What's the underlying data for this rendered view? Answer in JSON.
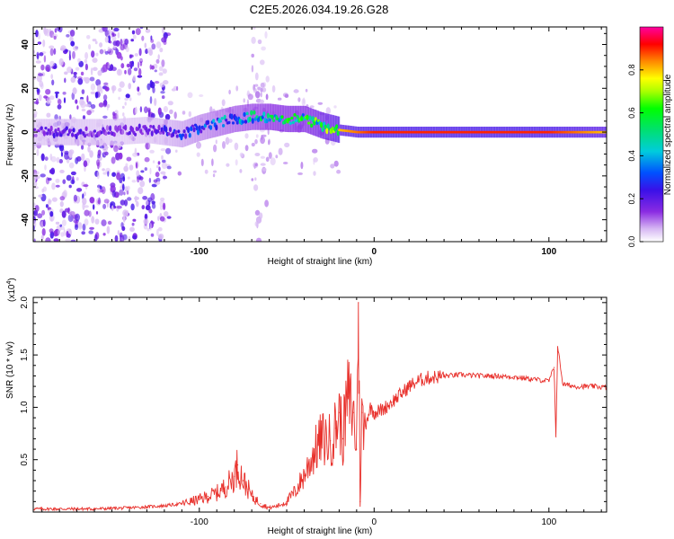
{
  "title": "C2E5.2026.034.19.26.G28",
  "colors": {
    "snr_line": "#e8302b",
    "axis": "#000000",
    "scatter_low": "#d8b8f4",
    "scatter_mid": "#7a2cf0",
    "scatter_core": "#5d10e6"
  },
  "chart_data": [
    {
      "type": "heatmap",
      "title": "C2E5.2026.034.19.26.G28",
      "xlabel": "Height of straight line (km)",
      "ylabel": "Frequency (Hz)",
      "xlim": [
        -195,
        133
      ],
      "ylim": [
        -50,
        48
      ],
      "x_ticks": [
        -100,
        0,
        100
      ],
      "x_tick_labels": [
        "-100",
        "0",
        "100"
      ],
      "y_ticks": [
        -40,
        -20,
        0,
        20,
        40
      ],
      "y_tick_labels": [
        "-40",
        "-20",
        "0",
        "20",
        "40"
      ],
      "colorbar": {
        "label": "Normalized spectral amplitude",
        "range": [
          0,
          1
        ],
        "ticks": [
          0.0,
          0.2,
          0.4,
          0.6,
          0.8
        ],
        "tick_labels": [
          "0.0",
          "0.2",
          "0.4",
          "0.6",
          "0.8"
        ]
      },
      "ridge": {
        "x": [
          -195,
          -170,
          -150,
          -130,
          -120,
          -110,
          -100,
          -90,
          -80,
          -70,
          -60,
          -50,
          -40,
          -30,
          -20,
          -10,
          0,
          10,
          50,
          100,
          133
        ],
        "y": [
          0,
          0,
          0,
          1,
          0,
          -1,
          2,
          4,
          6,
          7,
          7,
          6,
          6,
          3,
          1,
          0,
          0,
          0,
          0,
          0,
          0
        ],
        "amplitude": [
          0.2,
          0.22,
          0.18,
          0.2,
          0.25,
          0.3,
          0.35,
          0.4,
          0.45,
          0.5,
          0.55,
          0.6,
          0.6,
          0.7,
          0.8,
          0.85,
          0.9,
          0.9,
          0.9,
          0.9,
          0.8
        ]
      },
      "scatter_regions": [
        {
          "x_range": [
            -195,
            -117
          ],
          "y_range": [
            -50,
            48
          ],
          "amplitude": 0.2
        },
        {
          "x_range": [
            -70,
            -60
          ],
          "y_range": [
            -50,
            48
          ],
          "amplitude": 0.05
        },
        {
          "x_range": [
            -117,
            -20
          ],
          "y_range": [
            -20,
            20
          ],
          "amplitude": 0.05
        }
      ]
    },
    {
      "type": "line",
      "xlabel": "Height of straight line (km)",
      "ylabel": "SNR (10 * v/v)",
      "y_scale_label": "(x10",
      "y_scale_exponent": "4",
      "xlim": [
        -195,
        133
      ],
      "ylim": [
        0,
        2.05
      ],
      "x_ticks": [
        -100,
        0,
        100
      ],
      "x_tick_labels": [
        "-100",
        "0",
        "100"
      ],
      "y_ticks": [
        0.5,
        1.0,
        1.5,
        2.0
      ],
      "y_tick_labels": [
        "0.5",
        "1.0",
        "1.5",
        "2.0"
      ],
      "series": [
        {
          "name": "SNR",
          "x": [
            -195,
            -180,
            -160,
            -140,
            -130,
            -120,
            -110,
            -100,
            -95,
            -90,
            -85,
            -80,
            -78,
            -75,
            -72,
            -70,
            -65,
            -60,
            -55,
            -50,
            -45,
            -40,
            -35,
            -30,
            -25,
            -22,
            -20,
            -18,
            -15,
            -12,
            -10,
            -9,
            -8,
            -7,
            -6,
            -4,
            -2,
            0,
            5,
            10,
            15,
            20,
            25,
            30,
            40,
            50,
            60,
            70,
            80,
            90,
            100,
            103,
            104,
            105,
            108,
            115,
            125,
            133
          ],
          "y": [
            0.03,
            0.03,
            0.03,
            0.04,
            0.05,
            0.06,
            0.08,
            0.12,
            0.15,
            0.18,
            0.24,
            0.34,
            0.45,
            0.3,
            0.22,
            0.15,
            0.08,
            0.04,
            0.06,
            0.1,
            0.2,
            0.35,
            0.55,
            0.7,
            0.68,
            0.8,
            0.95,
            0.7,
            1.1,
            0.95,
            0.6,
            2.0,
            0.1,
            0.95,
            0.75,
            0.9,
            1.0,
            0.95,
            0.98,
            1.05,
            1.12,
            1.2,
            1.25,
            1.28,
            1.3,
            1.31,
            1.3,
            1.3,
            1.29,
            1.27,
            1.25,
            1.38,
            0.72,
            1.58,
            1.22,
            1.2,
            1.2,
            1.19
          ],
          "color": "#e8302b"
        }
      ]
    }
  ]
}
